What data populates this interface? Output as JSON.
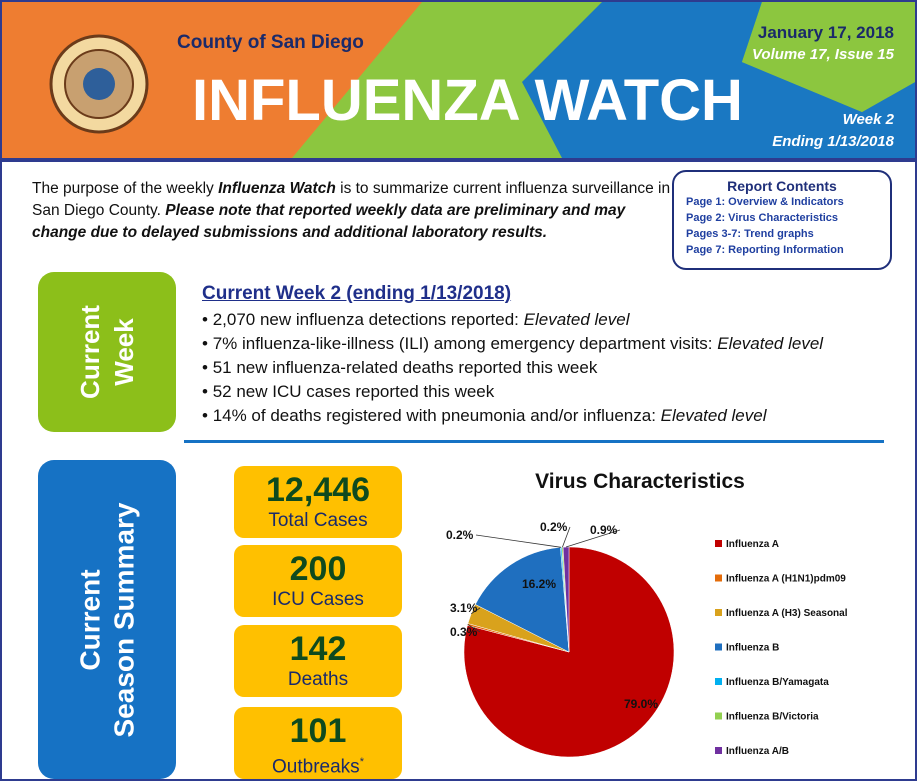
{
  "header": {
    "county": "County of San Diego",
    "title": "INFLUENZA WATCH",
    "date": "January 17, 2018",
    "volume": "Volume 17, Issue 15",
    "week": "Week 2",
    "ending": "Ending 1/13/2018"
  },
  "intro": {
    "parts": [
      "The purpose of the weekly ",
      "Influenza Watch",
      " is to summarize current influenza surveillance in San Diego County. ",
      "Please note that reported weekly data are preliminary and may change due to delayed submissions and additional laboratory results."
    ]
  },
  "contents": {
    "title": "Report Contents",
    "items": [
      "Page 1: Overview & Indicators",
      "Page 2: Virus Characteristics",
      "Pages 3-7: Trend graphs",
      "Page 7: Reporting Information"
    ]
  },
  "current_week": {
    "label_lines": [
      "Current",
      "Week"
    ],
    "heading": "Current Week 2 (ending 1/13/2018)",
    "bullets": [
      {
        "text": "2,070 new influenza detections reported: ",
        "level": "Elevated level"
      },
      {
        "text": "7% influenza-like-illness (ILI) among emergency department visits: ",
        "level": "Elevated level"
      },
      {
        "text": "51 new influenza-related deaths reported this week"
      },
      {
        "text": "52 new ICU cases reported this week"
      },
      {
        "text": "14% of deaths registered with pneumonia and/or influenza:  ",
        "level": "Elevated level"
      }
    ]
  },
  "season": {
    "label_lines": [
      "Current",
      "Season Summary"
    ],
    "stats": [
      {
        "value": "12,446",
        "label": "Total Cases"
      },
      {
        "value": "200",
        "label": "ICU Cases"
      },
      {
        "value": "142",
        "label": "Deaths"
      },
      {
        "value": "101",
        "label": "Outbreaks",
        "note": "*"
      }
    ]
  },
  "chart_data": {
    "type": "pie",
    "title": "Virus Characteristics",
    "categories": [
      "Influenza A",
      "Influenza A (H1N1)pdm09",
      "Influenza A (H3) Seasonal",
      "Influenza B",
      "Influenza B/Yamagata",
      "Influenza B/Victoria",
      "Influenza A/B"
    ],
    "values": [
      79.0,
      0.3,
      3.1,
      16.2,
      0.2,
      0.2,
      0.9
    ],
    "value_labels": [
      "79.0%",
      "0.3%",
      "3.1%",
      "16.2%",
      "0.2%",
      "0.2%",
      "0.9%"
    ],
    "colors": [
      "#c00000",
      "#e46c0a",
      "#d9a21c",
      "#1f6fbf",
      "#00b0f0",
      "#92d050",
      "#7030a0"
    ]
  }
}
